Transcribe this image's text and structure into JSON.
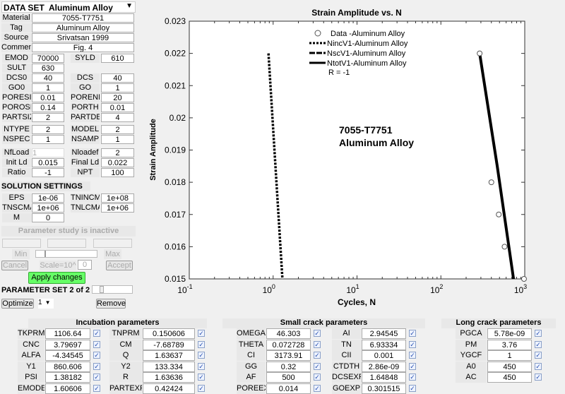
{
  "dataset": {
    "title": "DATA SET",
    "selected": "Aluminum Alloy",
    "material_label": "Material",
    "material": "7055-T7751",
    "tag_label": "Tag",
    "tag": "Aluminum Alloy",
    "source_label": "Source",
    "source": "Srivatsan 1999",
    "comment_label": "Comment",
    "comment": "Fig. 4",
    "fields": [
      {
        "label": "EMOD",
        "value": "70000"
      },
      {
        "label": "SYLD",
        "value": "610"
      },
      {
        "label": "SULT",
        "value": "630"
      },
      {
        "label": "DCS0",
        "value": "40"
      },
      {
        "label": "DCS",
        "value": "40"
      },
      {
        "label": "GO0",
        "value": "1"
      },
      {
        "label": "GO",
        "value": "1"
      },
      {
        "label": "PORESIZ",
        "value": "0.01"
      },
      {
        "label": "PORENN",
        "value": "20"
      },
      {
        "label": "POROSIT",
        "value": "0.14"
      },
      {
        "label": "PORTH",
        "value": "0.01"
      },
      {
        "label": "PARTSIZ",
        "value": "2"
      },
      {
        "label": "PARTDE",
        "value": "4"
      },
      {
        "label": "NTYPE",
        "value": "2"
      },
      {
        "label": "MODEL",
        "value": "2"
      },
      {
        "label": "NSPEC",
        "value": "1"
      },
      {
        "label": "NSAMP",
        "value": "1"
      },
      {
        "label": "NfLoad",
        "value": "1"
      },
      {
        "label": "Nloadef",
        "value": "2"
      },
      {
        "label": "Init Ld",
        "value": "0.015"
      },
      {
        "label": "Final Ld",
        "value": "0.022"
      },
      {
        "label": "Ratio",
        "value": "-1"
      },
      {
        "label": "NPT",
        "value": "100"
      }
    ]
  },
  "solution": {
    "title": "SOLUTION SETTINGS",
    "fields": [
      {
        "label": "EPS",
        "value": "1e-06"
      },
      {
        "label": "TNINCMA",
        "value": "1e+08"
      },
      {
        "label": "TNSCMA",
        "value": "1e+06"
      },
      {
        "label": "TNLCMA",
        "value": "1e+06"
      },
      {
        "label": "M",
        "value": "0"
      }
    ]
  },
  "study": {
    "status": "Parameter study is inactive",
    "min": "Min",
    "max": "Max",
    "cancel": "Cancel",
    "scale_label": "Scale=10^",
    "scale": "0",
    "accept": "Accept",
    "apply": "Apply changes",
    "apply_color": "#66ff66"
  },
  "paramset": {
    "title": "PARAMETER SET 2 of 2",
    "optimize": "Optimize",
    "selected": "1",
    "remove": "Remove"
  },
  "incubation": {
    "title": "Incubation parameters",
    "rows": [
      {
        "label": "TKPRM",
        "value": "1106.64"
      },
      {
        "label": "CNC",
        "value": "3.79697"
      },
      {
        "label": "ALFA",
        "value": "-4.34545"
      },
      {
        "label": "Y1",
        "value": "860.606"
      },
      {
        "label": "PSI",
        "value": "1.38182"
      },
      {
        "label": "EMODEX",
        "value": "1.60606"
      },
      {
        "label": "TNPRM",
        "value": "0.150606"
      },
      {
        "label": "CM",
        "value": "-7.68789"
      },
      {
        "label": "Q",
        "value": "1.63637"
      },
      {
        "label": "Y2",
        "value": "133.334"
      },
      {
        "label": "R",
        "value": "1.63636"
      },
      {
        "label": "PARTEXP",
        "value": "0.42424"
      }
    ]
  },
  "smallcrack": {
    "title": "Small crack parameters",
    "rows": [
      {
        "label": "OMEGA",
        "value": "46.303"
      },
      {
        "label": "THETA",
        "value": "0.072728"
      },
      {
        "label": "CI",
        "value": "3173.91"
      },
      {
        "label": "GG",
        "value": "0.32"
      },
      {
        "label": "AF",
        "value": "500"
      },
      {
        "label": "POREEX",
        "value": "0.014"
      },
      {
        "label": "AI",
        "value": "2.94545"
      },
      {
        "label": "TN",
        "value": "6.93334"
      },
      {
        "label": "CII",
        "value": "0.001"
      },
      {
        "label": "CTDTH",
        "value": "2.86e-09"
      },
      {
        "label": "DCSEXP",
        "value": "1.64848"
      },
      {
        "label": "GOEXP",
        "value": "0.301515"
      }
    ]
  },
  "longcrack": {
    "title": "Long crack parameters",
    "rows": [
      {
        "label": "PGCA",
        "value": "5.78e-09"
      },
      {
        "label": "PM",
        "value": "3.76"
      },
      {
        "label": "YGCF",
        "value": "1"
      },
      {
        "label": "A0",
        "value": "450"
      },
      {
        "label": "AC",
        "value": "450"
      }
    ]
  },
  "chart_data": {
    "type": "line",
    "title": "Strain Amplitude vs. N",
    "xlabel": "Cycles, N",
    "ylabel": "Strain Amplitude",
    "xscale": "log",
    "xlim": [
      0.1,
      1000
    ],
    "ylim": [
      0.015,
      0.023
    ],
    "xticks": [
      {
        "v": 0.1,
        "base": "10",
        "exp": "-1"
      },
      {
        "v": 1,
        "base": "10",
        "exp": "0"
      },
      {
        "v": 10,
        "base": "10",
        "exp": "1"
      },
      {
        "v": 100,
        "base": "10",
        "exp": "2"
      },
      {
        "v": 1000,
        "base": "10",
        "exp": "3"
      }
    ],
    "yticks": [
      "0.015",
      "0.016",
      "0.017",
      "0.018",
      "0.019",
      "0.02",
      "0.021",
      "0.022",
      "0.023"
    ],
    "legend_position": "top-left",
    "annotation": [
      "7055-T7751",
      "Aluminum Alloy"
    ],
    "legend_note": "R = -1",
    "series": [
      {
        "name": "Data -Aluminum Alloy",
        "style": "markers",
        "x": [
          290,
          400,
          490,
          575,
          980
        ],
        "y": [
          0.022,
          0.018,
          0.017,
          0.016,
          0.015
        ]
      },
      {
        "name": "NincV1-Aluminum Alloy",
        "style": "dotted",
        "x": [
          0.88,
          1.29
        ],
        "y": [
          0.022,
          0.015
        ]
      },
      {
        "name": "NscV1-Aluminum Alloy",
        "style": "dashed",
        "x": [],
        "y": []
      },
      {
        "name": "NtotV1-Aluminum Alloy",
        "style": "solid",
        "x": [
          290,
          470,
          735
        ],
        "y": [
          0.022,
          0.0185,
          0.015
        ]
      }
    ]
  }
}
